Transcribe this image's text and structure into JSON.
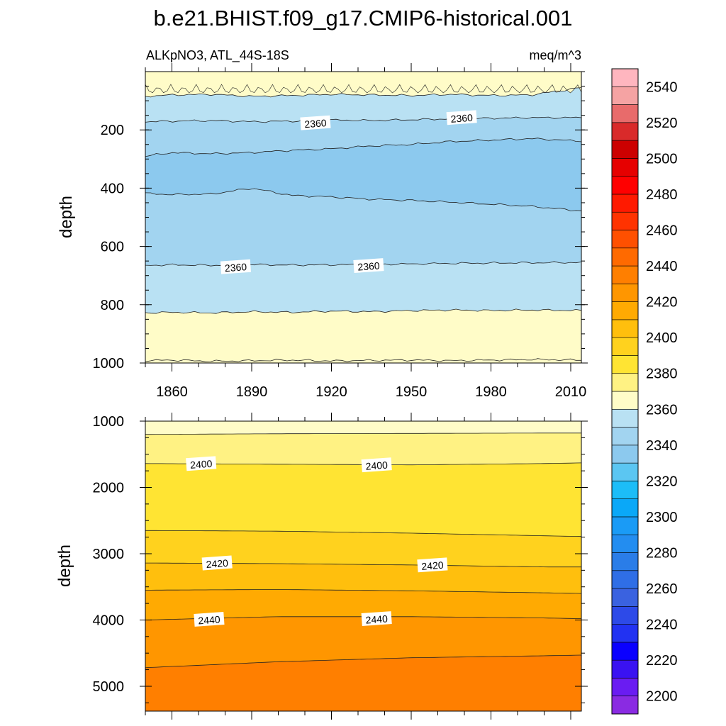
{
  "title": "b.e21.BHIST.f09_g17.CMIP6-historical.001",
  "chart_data": [
    {
      "type": "contour",
      "panel": "upper",
      "left_label": "ALKpNO3, ATL_44S-18S",
      "right_label": "meq/m^3",
      "xlabel": "",
      "ylabel": "depth",
      "xlim": [
        1850,
        2014
      ],
      "ylim": [
        1000,
        0
      ],
      "x_ticks": [
        1860,
        1890,
        1920,
        1950,
        1980,
        2010
      ],
      "y_ticks": [
        200,
        400,
        600,
        800,
        1000
      ],
      "contour_lines": [
        {
          "level": 2380,
          "x": [
            1850,
            1860,
            1875,
            1890,
            1905,
            1920,
            1935,
            1950,
            1965,
            1980,
            1995,
            2014
          ],
          "depth": [
            85,
            80,
            78,
            85,
            82,
            78,
            80,
            82,
            78,
            82,
            80,
            55
          ]
        },
        {
          "level": 2360,
          "x": [
            1850,
            1860,
            1875,
            1890,
            1905,
            1920,
            1935,
            1950,
            1965,
            1980,
            1995,
            2014
          ],
          "depth": [
            172,
            170,
            168,
            172,
            170,
            166,
            168,
            165,
            162,
            160,
            158,
            158
          ]
        },
        {
          "level": 2350,
          "x": [
            1850,
            1860,
            1875,
            1890,
            1905,
            1920,
            1935,
            1950,
            1965,
            1980,
            1995,
            2014
          ],
          "depth": [
            290,
            278,
            282,
            278,
            270,
            265,
            255,
            250,
            240,
            235,
            230,
            238
          ]
        },
        {
          "level": 2350,
          "x": [
            1850,
            1860,
            1875,
            1890,
            1905,
            1920,
            1935,
            1950,
            1965,
            1980,
            1995,
            2014
          ],
          "depth": [
            418,
            422,
            420,
            400,
            425,
            430,
            438,
            442,
            448,
            455,
            462,
            478
          ]
        },
        {
          "level": 2360,
          "x": [
            1850,
            1860,
            1875,
            1890,
            1905,
            1920,
            1935,
            1950,
            1965,
            1980,
            1995,
            2014
          ],
          "depth": [
            665,
            663,
            665,
            662,
            664,
            663,
            662,
            660,
            658,
            657,
            656,
            655
          ]
        },
        {
          "level": 2370,
          "x": [
            1850,
            1860,
            1875,
            1890,
            1905,
            1920,
            1935,
            1950,
            1965,
            1980,
            1995,
            2014
          ],
          "depth": [
            828,
            826,
            828,
            824,
            826,
            822,
            824,
            820,
            818,
            820,
            818,
            820
          ]
        },
        {
          "level": 2380,
          "x": [
            1850,
            1860,
            1875,
            1890,
            1905,
            1920,
            1935,
            1950,
            1965,
            1980,
            1995,
            2014
          ],
          "depth": [
            992,
            990,
            994,
            992,
            990,
            993,
            991,
            990,
            992,
            990,
            988,
            990
          ]
        }
      ],
      "contour_labels": [
        {
          "text": "2360",
          "x": 1914,
          "depth": 178
        },
        {
          "text": "2360",
          "x": 1969,
          "depth": 160
        },
        {
          "text": "2360",
          "x": 1884,
          "depth": 672
        },
        {
          "text": "2360",
          "x": 1934,
          "depth": 668
        }
      ],
      "fill_colors": [
        "#fffcc8",
        "#b9e1f3",
        "#a2d4f0",
        "#8cc9ee",
        "#a2d4f0",
        "#b9e1f3",
        "#fffcc8"
      ]
    },
    {
      "type": "contour",
      "panel": "lower",
      "xlabel": "",
      "ylabel": "depth",
      "xlim": [
        1850,
        2014
      ],
      "ylim": [
        5375,
        1000
      ],
      "y_ticks": [
        1000,
        2000,
        3000,
        4000,
        5000
      ],
      "contour_lines": [
        {
          "level": 2390,
          "x": [
            1850,
            1900,
            1950,
            2000,
            2014
          ],
          "depth": [
            1200,
            1190,
            1185,
            1180,
            1180
          ]
        },
        {
          "level": 2400,
          "x": [
            1850,
            1900,
            1950,
            2000,
            2014
          ],
          "depth": [
            1640,
            1650,
            1660,
            1640,
            1630
          ]
        },
        {
          "level": 2410,
          "x": [
            1850,
            1900,
            1950,
            2000,
            2014
          ],
          "depth": [
            2650,
            2660,
            2690,
            2730,
            2740
          ]
        },
        {
          "level": 2420,
          "x": [
            1850,
            1900,
            1950,
            2000,
            2014
          ],
          "depth": [
            3140,
            3150,
            3170,
            3200,
            3200
          ]
        },
        {
          "level": 2430,
          "x": [
            1850,
            1900,
            1950,
            2000,
            2014
          ],
          "depth": [
            3550,
            3540,
            3560,
            3590,
            3600
          ]
        },
        {
          "level": 2440,
          "x": [
            1850,
            1900,
            1950,
            2000,
            2014
          ],
          "depth": [
            4000,
            3950,
            3950,
            3970,
            3980
          ]
        },
        {
          "level": 2450,
          "x": [
            1850,
            1900,
            1950,
            2000,
            2014
          ],
          "depth": [
            4720,
            4630,
            4570,
            4540,
            4530
          ]
        }
      ],
      "contour_labels": [
        {
          "text": "2400",
          "x": 1871,
          "depth": 1650
        },
        {
          "text": "2400",
          "x": 1937,
          "depth": 1670
        },
        {
          "text": "2420",
          "x": 1877,
          "depth": 3150
        },
        {
          "text": "2420",
          "x": 1958,
          "depth": 3180
        },
        {
          "text": "2440",
          "x": 1874,
          "depth": 4000
        },
        {
          "text": "2440",
          "x": 1937,
          "depth": 3990
        }
      ],
      "fill_colors": [
        "#fffcc8",
        "#fff283",
        "#ffe433",
        "#ffd21e",
        "#ffbf0d",
        "#ffaa02",
        "#ff9600",
        "#ff7f00"
      ]
    }
  ],
  "colorbar": {
    "levels": [
      2200,
      2210,
      2220,
      2230,
      2240,
      2250,
      2260,
      2270,
      2280,
      2290,
      2300,
      2310,
      2320,
      2330,
      2340,
      2350,
      2360,
      2370,
      2380,
      2390,
      2400,
      2410,
      2420,
      2430,
      2440,
      2450,
      2460,
      2470,
      2480,
      2490,
      2500,
      2510,
      2520,
      2530,
      2540,
      2550
    ],
    "labels": [
      "2200",
      "2220",
      "2240",
      "2260",
      "2280",
      "2300",
      "2320",
      "2340",
      "2360",
      "2380",
      "2400",
      "2420",
      "2440",
      "2460",
      "2480",
      "2500",
      "2520",
      "2540"
    ],
    "colors": [
      "#8a2be2",
      "#6a1cf2",
      "#3a12f2",
      "#0a00ff",
      "#2232f2",
      "#2d4ae8",
      "#3a62e0",
      "#2f6ee6",
      "#2a7de8",
      "#238df0",
      "#1a9bf6",
      "#0aa8f8",
      "#1cbdf8",
      "#5bc6f2",
      "#8cc9ee",
      "#a2d4f0",
      "#b9e1f3",
      "#fffcc8",
      "#fff283",
      "#ffe433",
      "#ffd21e",
      "#ffbf0d",
      "#ffaa02",
      "#ff9600",
      "#ff7f00",
      "#ff6a00",
      "#ff5000",
      "#ff3300",
      "#ff1a00",
      "#ff0000",
      "#e60000",
      "#cc0000",
      "#d92a2a",
      "#e86b6b",
      "#f5a3a3",
      "#ffb6bf"
    ]
  }
}
